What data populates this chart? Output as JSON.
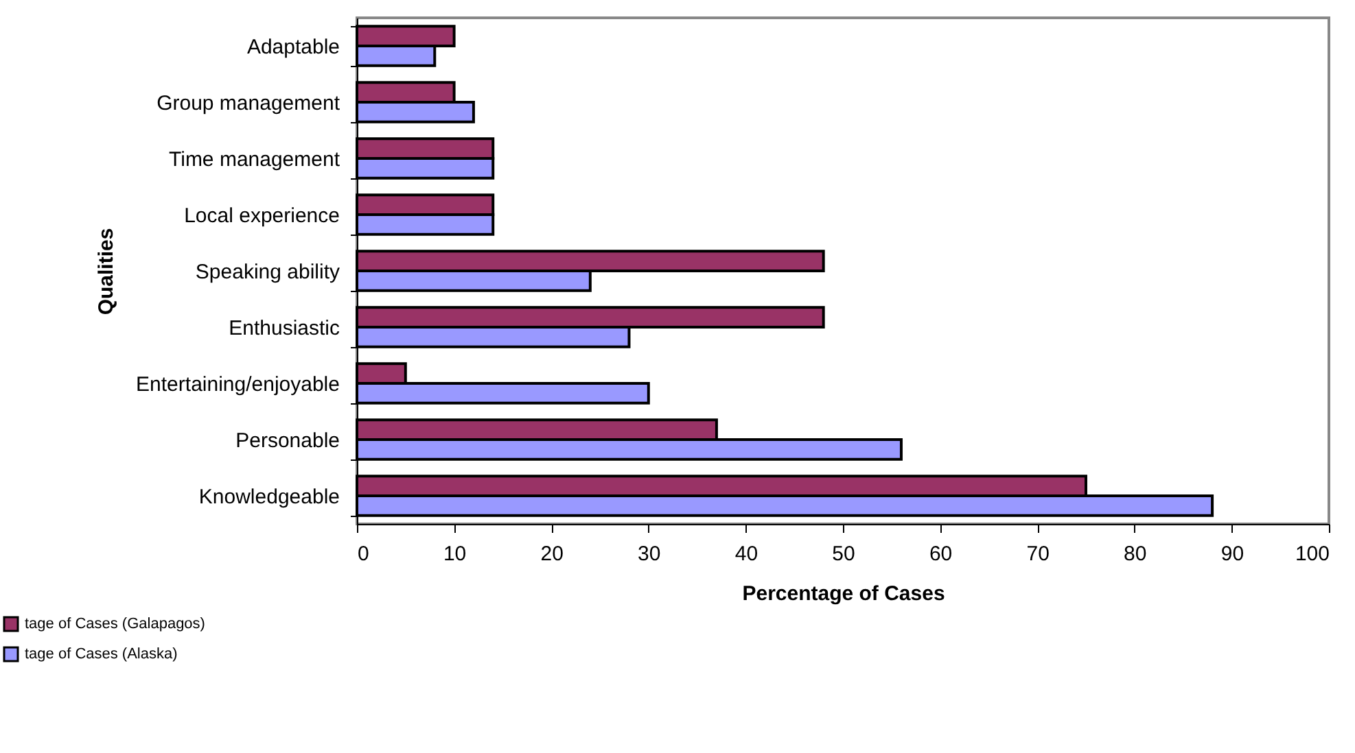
{
  "chart_data": {
    "type": "bar",
    "orientation": "horizontal",
    "xlabel": "Percentage of Cases",
    "ylabel": "Qualities",
    "categories": [
      "Adaptable",
      "Group management",
      "Time management",
      "Local experience",
      "Speaking ability",
      "Enthusiastic",
      "Entertaining/enjoyable",
      "Personable",
      "Knowledgeable"
    ],
    "series": [
      {
        "name": "tage of Cases (Galapagos)",
        "color": "#993366",
        "values": [
          10,
          10,
          14,
          14,
          48,
          48,
          5,
          37,
          75
        ]
      },
      {
        "name": "tage of Cases (Alaska)",
        "color": "#9999ff",
        "values": [
          8,
          12,
          14,
          14,
          24,
          28,
          30,
          56,
          88
        ]
      }
    ],
    "xlim": [
      0,
      100
    ],
    "xticks": [
      0,
      10,
      20,
      30,
      40,
      50,
      60,
      70,
      80,
      90,
      100
    ],
    "grid": false,
    "legend": "bottom left"
  }
}
